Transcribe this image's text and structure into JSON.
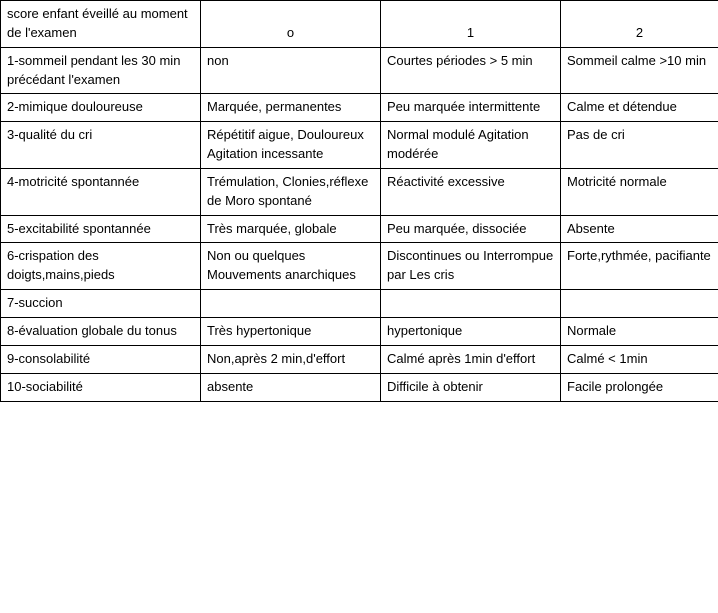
{
  "table": {
    "header": {
      "row_label": "score enfant éveillé au moment de l'examen",
      "col0": "o",
      "col1": "1",
      "col2": "2"
    },
    "rows": [
      {
        "label": "1-sommeil pendant les 30 min précédant l'examen",
        "c0": "non",
        "c1": "Courtes périodes > 5 min",
        "c2": "Sommeil calme >10 min"
      },
      {
        "label": "2-mimique douloureuse",
        "c0": "Marquée, permanentes",
        "c1": "Peu marquée intermittente",
        "c2": "Calme et détendue"
      },
      {
        "label": "3-qualité du cri",
        "c0": "Répétitif aigue, Douloureux Agitation incessante",
        "c1": "Normal modulé Agitation modérée",
        "c2": "Pas de cri"
      },
      {
        "label": "4-motricité spontannée",
        "c0": "Trémulation, Clonies,réflexe de Moro spontané",
        "c1": "Réactivité excessive",
        "c2": "Motricité normale"
      },
      {
        "label": "5-excitabilité spontannée",
        "c0": "Très marquée, globale",
        "c1": "Peu marquée, dissociée",
        "c2": "Absente"
      },
      {
        "label": "6-crispation des doigts,mains,pieds",
        "c0": "Non ou quelques Mouvements anarchiques",
        "c1": "Discontinues ou Interrompue par Les cris",
        "c2": "Forte,rythmée, pacifiante"
      },
      {
        "label": "7-succion",
        "c0": "",
        "c1": "",
        "c2": ""
      },
      {
        "label": "8-évaluation globale du tonus",
        "c0": "Très hypertonique",
        "c1": "hypertonique",
        "c2": "Normale"
      },
      {
        "label": "9-consolabilité",
        "c0": "Non,après 2 min,d'effort",
        "c1": "Calmé après 1min d'effort",
        "c2": "Calmé < 1min"
      },
      {
        "label": "10-sociabilité",
        "c0": "absente",
        "c1": "Difficile à obtenir",
        "c2": "Facile prolongée"
      }
    ]
  }
}
